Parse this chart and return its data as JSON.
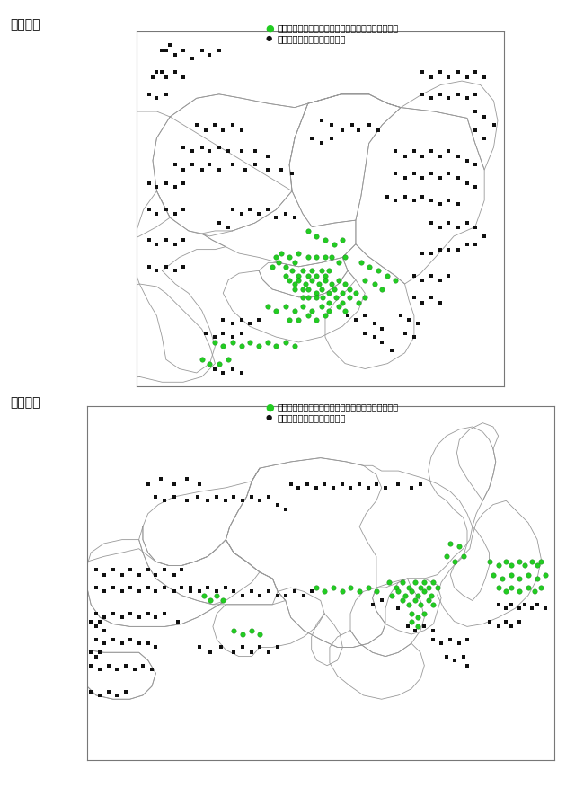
{
  "title_kanto": "関東地域",
  "title_kansai": "関西地域",
  "legend_green": "：出現日数が１日から９日までの範囲にある測定局",
  "legend_black": "：出現日数が無かった測定局",
  "green_color": "#22cc22",
  "black_color": "#111111",
  "line_color": "#999999",
  "bg_color": "#ffffff",
  "kanto_xlim": [
    138.33,
    141.1
  ],
  "kanto_ylim": [
    34.85,
    37.52
  ],
  "kansai_xlim": [
    132.95,
    136.55
  ],
  "kansai_ylim": [
    33.35,
    36.08
  ],
  "figsize": [
    6.4,
    8.86
  ],
  "dpi": 100
}
